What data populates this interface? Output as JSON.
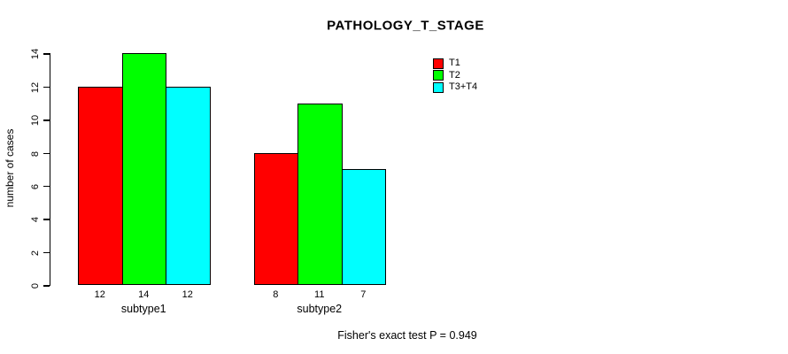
{
  "chart_data": {
    "type": "bar",
    "title": "PATHOLOGY_T_STAGE",
    "ylabel": "number of cases",
    "xlabel": "",
    "categories": [
      "subtype1",
      "subtype2"
    ],
    "series": [
      {
        "name": "T1",
        "color": "#FF0000",
        "values": [
          12,
          8
        ]
      },
      {
        "name": "T2",
        "color": "#00FF00",
        "values": [
          14,
          11
        ]
      },
      {
        "name": "T3+T4",
        "color": "#00FFFF",
        "values": [
          12,
          7
        ]
      }
    ],
    "ylim": [
      0,
      14
    ],
    "y_ticks": [
      0,
      2,
      4,
      6,
      8,
      10,
      12,
      14
    ],
    "bar_value_labels": [
      [
        12,
        14,
        12
      ],
      [
        8,
        11,
        7
      ]
    ],
    "grid": false,
    "legend": {
      "position": "top-right",
      "entries": [
        "T1",
        "T2",
        "T3+T4"
      ]
    },
    "annotation": "Fisher's exact test P = 0.949"
  }
}
